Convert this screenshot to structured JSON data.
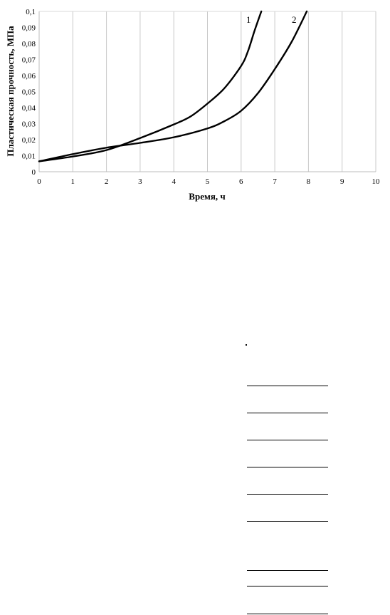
{
  "chart_data": {
    "type": "line",
    "xlabel": "Время, ч",
    "ylabel": "Пластическая прочность, МПа",
    "xlim": [
      0,
      10
    ],
    "ylim": [
      0,
      0.1
    ],
    "x_ticks": [
      "0",
      "1",
      "2",
      "3",
      "4",
      "5",
      "6",
      "7",
      "8",
      "9",
      "10"
    ],
    "y_ticks": [
      "0",
      "0,01",
      "0,02",
      "0,03",
      "0,04",
      "0,05",
      "0,06",
      "0,07",
      "0,08",
      "0,09",
      "0,1"
    ],
    "grid": "vertical",
    "series": [
      {
        "name": "1",
        "x": [
          0,
          1,
          2,
          3,
          4,
          4.5,
          5,
          5.5,
          6,
          6.2,
          6.4,
          6.6
        ],
        "y": [
          0.0065,
          0.0095,
          0.0135,
          0.021,
          0.0295,
          0.0345,
          0.0425,
          0.052,
          0.066,
          0.075,
          0.088,
          0.1
        ]
      },
      {
        "name": "2",
        "x": [
          0,
          1,
          2,
          3,
          4,
          5,
          5.5,
          6,
          6.5,
          7,
          7.5,
          7.95
        ],
        "y": [
          0.0065,
          0.011,
          0.015,
          0.018,
          0.0215,
          0.027,
          0.0315,
          0.038,
          0.049,
          0.064,
          0.081,
          0.1
        ]
      }
    ]
  },
  "form_lines_count": 9
}
